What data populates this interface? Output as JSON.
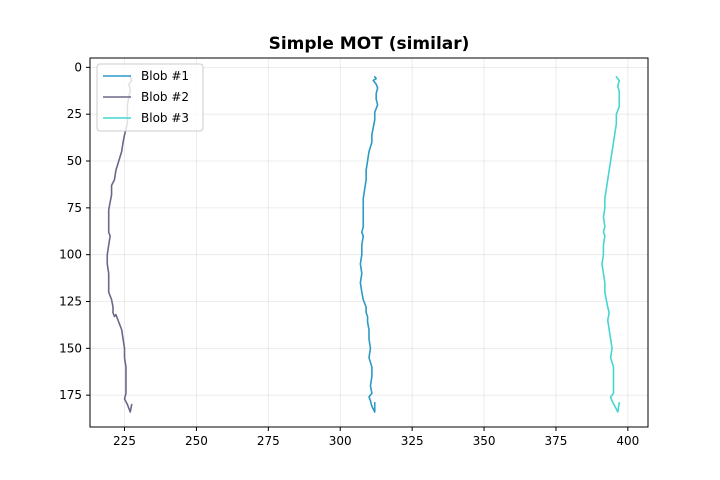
{
  "chart_data": {
    "type": "line",
    "title": "Simple MOT (similar)",
    "xlabel": "",
    "ylabel": "",
    "xlim": [
      213,
      407
    ],
    "ylim": [
      192,
      -5
    ],
    "y_inverted": true,
    "grid": true,
    "legend_position": "top-left",
    "x_ticks": [
      225,
      250,
      275,
      300,
      325,
      350,
      375,
      400
    ],
    "y_ticks": [
      0,
      25,
      50,
      75,
      100,
      125,
      150,
      175
    ],
    "series": [
      {
        "name": "Blob #1",
        "color": "#2b9ac4",
        "points": [
          [
            312,
            5
          ],
          [
            312.5,
            6
          ],
          [
            311.5,
            7
          ],
          [
            312.5,
            9
          ],
          [
            313,
            11
          ],
          [
            312.5,
            14
          ],
          [
            312.5,
            17
          ],
          [
            313,
            20
          ],
          [
            312,
            24
          ],
          [
            312,
            28
          ],
          [
            311.5,
            32
          ],
          [
            311,
            36
          ],
          [
            311,
            40
          ],
          [
            310,
            45
          ],
          [
            309.5,
            50
          ],
          [
            309,
            55
          ],
          [
            309,
            60
          ],
          [
            308.5,
            65
          ],
          [
            308,
            70
          ],
          [
            308,
            75
          ],
          [
            308,
            80
          ],
          [
            308,
            85
          ],
          [
            307.5,
            88
          ],
          [
            308,
            90
          ],
          [
            307.5,
            95
          ],
          [
            307.5,
            100
          ],
          [
            307,
            105
          ],
          [
            307.5,
            110
          ],
          [
            307,
            115
          ],
          [
            307.5,
            120
          ],
          [
            308,
            124
          ],
          [
            309,
            128
          ],
          [
            309,
            131
          ],
          [
            309.5,
            133
          ],
          [
            309.5,
            136
          ],
          [
            310,
            140
          ],
          [
            310,
            145
          ],
          [
            310.5,
            150
          ],
          [
            310,
            155
          ],
          [
            311,
            160
          ],
          [
            311,
            165
          ],
          [
            310.5,
            170
          ],
          [
            311,
            174
          ],
          [
            310,
            176
          ],
          [
            310.5,
            178
          ],
          [
            311,
            181
          ],
          [
            312,
            184
          ],
          [
            312,
            179
          ]
        ]
      },
      {
        "name": "Blob #2",
        "color": "#6e6687",
        "points": [
          [
            227,
            5
          ],
          [
            227.5,
            7
          ],
          [
            226.5,
            9
          ],
          [
            227,
            12
          ],
          [
            226.5,
            16
          ],
          [
            226,
            20
          ],
          [
            226,
            25
          ],
          [
            226,
            30
          ],
          [
            225,
            36
          ],
          [
            224.5,
            40
          ],
          [
            224,
            45
          ],
          [
            223,
            50
          ],
          [
            222,
            55
          ],
          [
            221.5,
            60
          ],
          [
            220.5,
            63
          ],
          [
            220.5,
            68
          ],
          [
            220,
            72
          ],
          [
            219.5,
            76
          ],
          [
            219.5,
            80
          ],
          [
            219.5,
            85
          ],
          [
            219.5,
            88
          ],
          [
            220,
            90
          ],
          [
            219.5,
            95
          ],
          [
            219,
            100
          ],
          [
            219,
            105
          ],
          [
            219.5,
            110
          ],
          [
            219.5,
            115
          ],
          [
            219.5,
            120
          ],
          [
            220.5,
            124
          ],
          [
            221,
            128
          ],
          [
            221,
            131
          ],
          [
            221.5,
            133
          ],
          [
            222,
            132
          ],
          [
            223,
            136
          ],
          [
            224,
            140
          ],
          [
            224.5,
            145
          ],
          [
            225,
            150
          ],
          [
            225,
            155
          ],
          [
            225.5,
            160
          ],
          [
            225.5,
            165
          ],
          [
            225.5,
            170
          ],
          [
            225.5,
            174
          ],
          [
            225,
            177
          ],
          [
            226,
            180
          ],
          [
            227,
            184
          ],
          [
            227.5,
            180
          ]
        ]
      },
      {
        "name": "Blob #3",
        "color": "#45d6d2",
        "points": [
          [
            396,
            5
          ],
          [
            397,
            7
          ],
          [
            396.5,
            10
          ],
          [
            397,
            13
          ],
          [
            397,
            17
          ],
          [
            397,
            21
          ],
          [
            396,
            25
          ],
          [
            396,
            30
          ],
          [
            395.5,
            35
          ],
          [
            395,
            40
          ],
          [
            394.5,
            45
          ],
          [
            394,
            50
          ],
          [
            393.5,
            55
          ],
          [
            393,
            60
          ],
          [
            392.5,
            65
          ],
          [
            392,
            70
          ],
          [
            392,
            75
          ],
          [
            391.5,
            80
          ],
          [
            392,
            85
          ],
          [
            391.5,
            88
          ],
          [
            392,
            90
          ],
          [
            391.5,
            95
          ],
          [
            391.5,
            100
          ],
          [
            391,
            105
          ],
          [
            391.5,
            110
          ],
          [
            392,
            115
          ],
          [
            392,
            120
          ],
          [
            392.5,
            124
          ],
          [
            393,
            128
          ],
          [
            393.5,
            131
          ],
          [
            393,
            135
          ],
          [
            393.5,
            140
          ],
          [
            394,
            145
          ],
          [
            394.5,
            150
          ],
          [
            394,
            155
          ],
          [
            395,
            160
          ],
          [
            395,
            165
          ],
          [
            395,
            170
          ],
          [
            395,
            174
          ],
          [
            394,
            176
          ],
          [
            394.5,
            178
          ],
          [
            395.5,
            181
          ],
          [
            396.5,
            184
          ],
          [
            397,
            179
          ]
        ]
      }
    ]
  }
}
